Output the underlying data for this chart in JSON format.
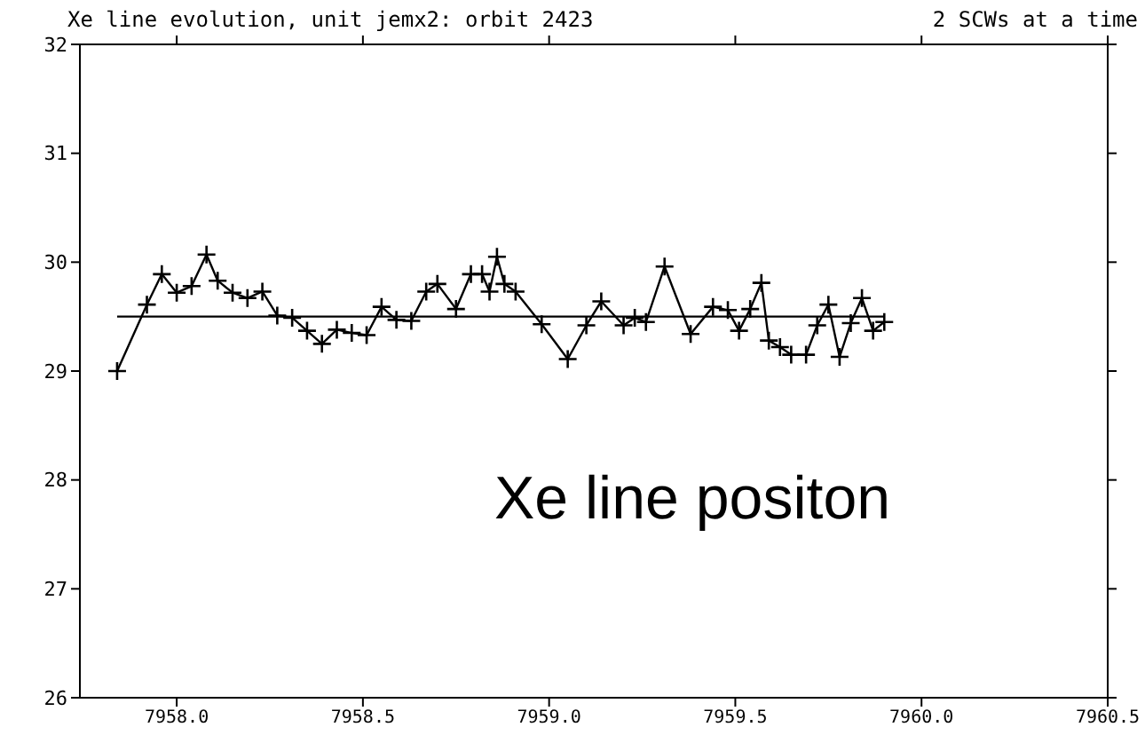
{
  "chart_data": {
    "type": "line",
    "title": "Xe line evolution, unit jemx2: orbit 2423",
    "subtitle": "2 SCWs at a time",
    "annotations": [
      "Xe line positon"
    ],
    "xlim": [
      7957.74,
      7960.5
    ],
    "xticks": [
      {
        "value": 7958,
        "label": "7958.0"
      },
      {
        "value": 7958.5,
        "label": "7958.5"
      },
      {
        "value": 7959,
        "label": "7959.0"
      },
      {
        "value": 7959.5,
        "label": "7959.5"
      },
      {
        "value": 7960,
        "label": "7960.0"
      },
      {
        "value": 7960.5,
        "label": "7960.5"
      }
    ],
    "ylim": [
      26,
      32
    ],
    "yticks": [
      26,
      27,
      28,
      29,
      30,
      31,
      32
    ],
    "marker": "cross",
    "line_style": "solid",
    "series": [
      {
        "color": "#000000",
        "x": [
          7957.84,
          7957.92,
          7957.96,
          7958.0,
          7958.04,
          7958.08,
          7958.11,
          7958.15,
          7958.19,
          7958.23,
          7958.27,
          7958.31,
          7958.35,
          7958.39,
          7958.43,
          7958.47,
          7958.51,
          7958.55,
          7958.59,
          7958.63,
          7958.67,
          7958.7,
          7958.75,
          7958.79,
          7958.82,
          7958.84,
          7958.86,
          7958.88,
          7958.91,
          7958.98,
          7959.05,
          7959.1,
          7959.14,
          7959.2,
          7959.23,
          7959.26,
          7959.31,
          7959.38,
          7959.44,
          7959.48,
          7959.51,
          7959.54,
          7959.57,
          7959.59,
          7959.62,
          7959.65,
          7959.69,
          7959.72,
          7959.75,
          7959.78,
          7959.81,
          7959.84,
          7959.87,
          7959.9
        ],
        "values": [
          29.0,
          29.61,
          29.89,
          29.72,
          29.78,
          30.07,
          29.83,
          29.72,
          29.67,
          29.73,
          29.51,
          29.49,
          29.37,
          29.25,
          29.38,
          29.35,
          29.33,
          29.59,
          29.47,
          29.46,
          29.73,
          29.8,
          29.57,
          29.89,
          29.89,
          29.73,
          30.05,
          29.8,
          29.73,
          29.43,
          29.11,
          29.42,
          29.64,
          29.42,
          29.49,
          29.45,
          29.96,
          29.34,
          29.59,
          29.56,
          29.37,
          29.57,
          29.81,
          29.28,
          29.22,
          29.15,
          29.15,
          29.42,
          29.61,
          29.13,
          29.44,
          29.67,
          29.37,
          29.45
        ]
      },
      {
        "type": "line",
        "marker": "none",
        "color": "#000000",
        "x": [
          7957.84,
          7959.9
        ],
        "values": [
          29.5,
          29.5
        ]
      }
    ]
  }
}
